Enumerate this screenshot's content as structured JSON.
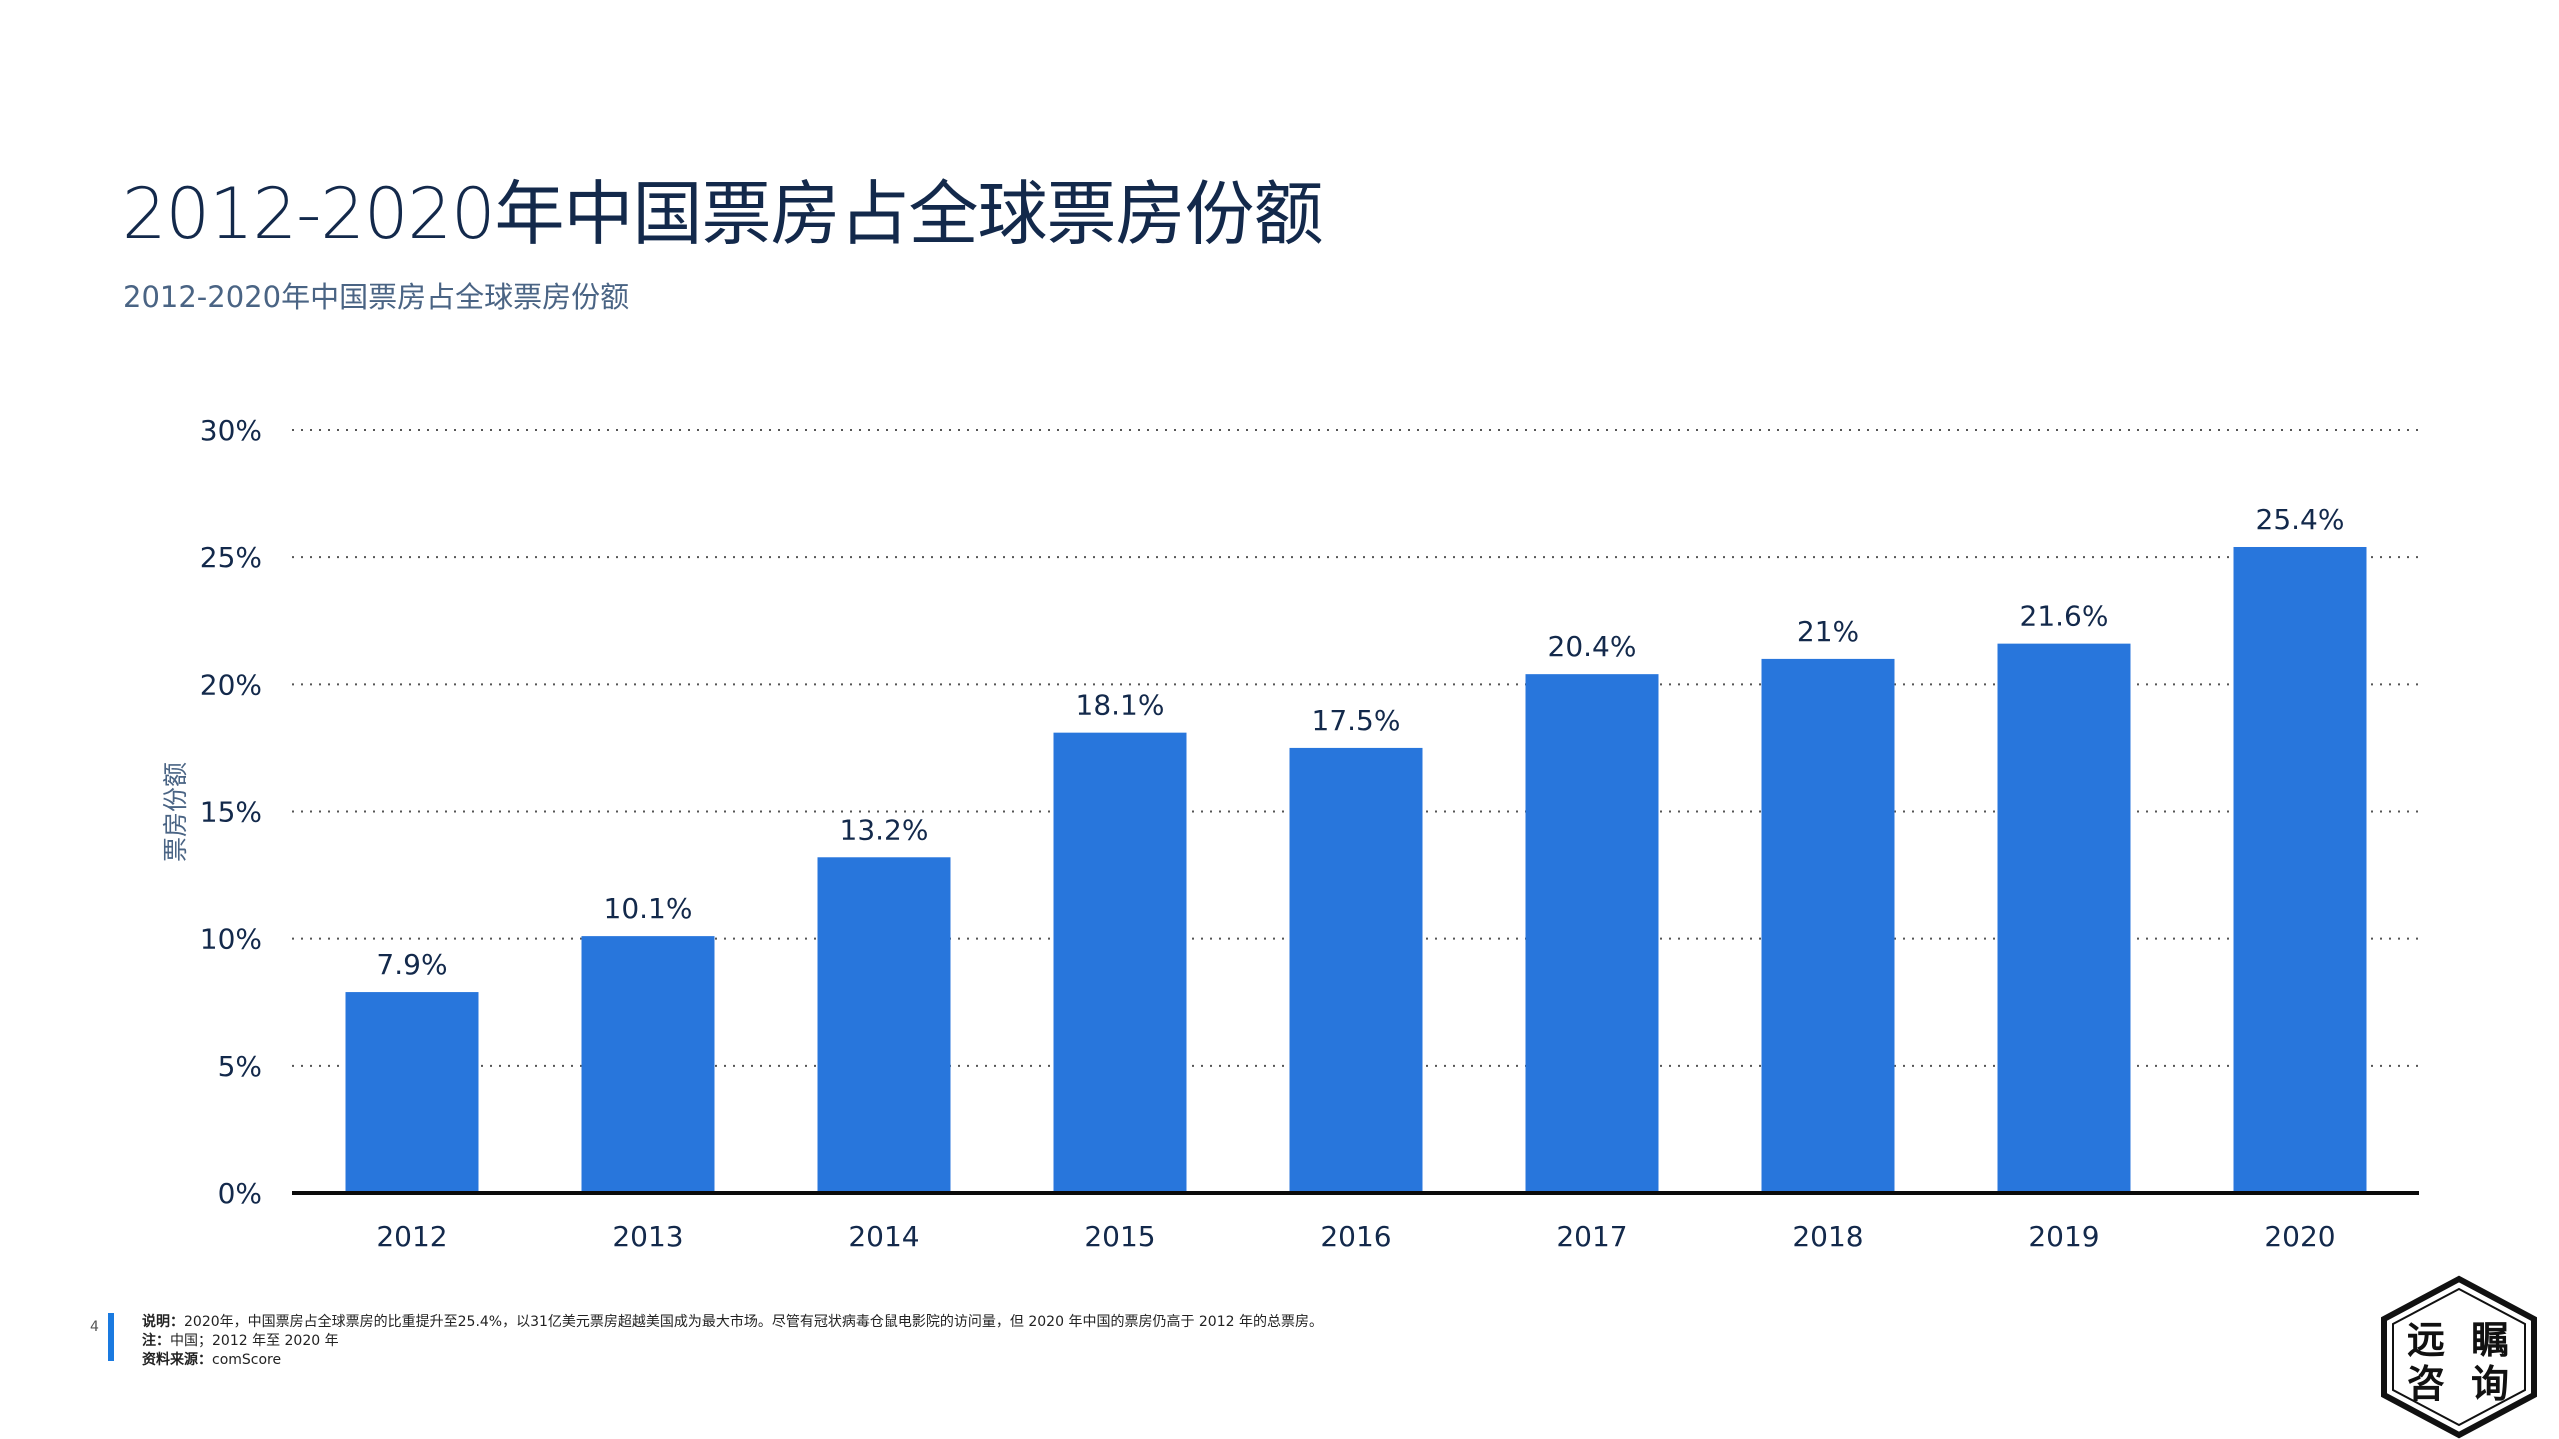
{
  "header": {
    "title": "2012-2020年中国票房占全球票房份额",
    "subtitle": "2012-2020年中国票房占全球票房份额"
  },
  "chart_data": {
    "type": "bar",
    "title": "2012-2020年中国票房占全球票房份额",
    "xlabel": "",
    "ylabel": "票房份额",
    "categories": [
      "2012",
      "2013",
      "2014",
      "2015",
      "2016",
      "2017",
      "2018",
      "2019",
      "2020"
    ],
    "values": [
      7.9,
      10.1,
      13.2,
      18.1,
      17.5,
      20.4,
      21,
      21.6,
      25.4
    ],
    "data_labels": [
      "7.9%",
      "10.1%",
      "13.2%",
      "18.1%",
      "17.5%",
      "20.4%",
      "21%",
      "21.6%",
      "25.4%"
    ],
    "ylim": [
      0,
      30
    ],
    "yticks": [
      0,
      5,
      10,
      15,
      20,
      25,
      30
    ],
    "ytick_labels": [
      "0%",
      "5%",
      "10%",
      "15%",
      "20%",
      "25%",
      "30%"
    ],
    "grid": true,
    "bar_color": "#2876dc"
  },
  "footer": {
    "page_number": "4",
    "note_label": "说明：",
    "note_text": "2020年，中国票房占全球票房的比重提升至25.4%，以31亿美元票房超越美国成为最大市场。尽管有冠状病毒仓鼠电影院的访问量，但 2020 年中国的票房仍高于 2012 年的总票房。",
    "remark_label": "注：",
    "remark_text": "中国；2012 年至 2020 年",
    "source_label": "资料来源：",
    "source_text": "comScore"
  },
  "logo": {
    "text": "远瞩咨询",
    "chars": [
      "远",
      "瞩",
      "咨",
      "询"
    ]
  }
}
